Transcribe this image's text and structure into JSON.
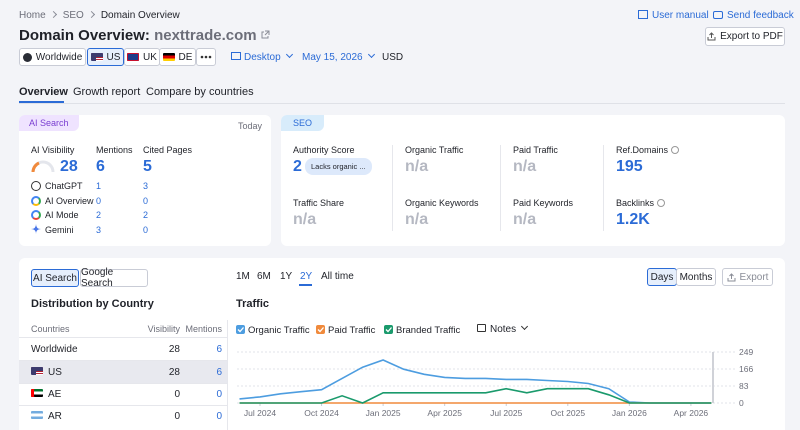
{
  "breadcrumb": [
    "Home",
    "SEO",
    "Domain Overview"
  ],
  "header": {
    "title": "Domain Overview:",
    "domain": "nexttrade.com",
    "user_manual": "User manual",
    "send_feedback": "Send feedback",
    "export": "Export to PDF"
  },
  "filters": {
    "databases": [
      "Worldwide",
      "US",
      "UK",
      "DE"
    ],
    "device": "Desktop",
    "date": "May 15, 2026",
    "currency": "USD"
  },
  "tabs": [
    "Overview",
    "Growth report",
    "Compare by countries"
  ],
  "ai_search": {
    "badge": "AI Search",
    "date": "Today",
    "metrics": [
      {
        "label": "AI Visibility",
        "value": 28
      },
      {
        "label": "Mentions",
        "value": 6
      },
      {
        "label": "Cited Pages",
        "value": 5
      }
    ],
    "rows": [
      {
        "name": "ChatGPT",
        "mentions": 1,
        "cited": 3
      },
      {
        "name": "AI Overview",
        "mentions": 0,
        "cited": 0
      },
      {
        "name": "AI Mode",
        "mentions": 2,
        "cited": 2
      },
      {
        "name": "Gemini",
        "mentions": 3,
        "cited": 0
      }
    ]
  },
  "seo": {
    "badge": "SEO",
    "metrics": [
      {
        "label": "Authority Score",
        "value": "2",
        "note": "Lacks organic ..."
      },
      {
        "label": "Organic Traffic",
        "value": "n/a"
      },
      {
        "label": "Paid Traffic",
        "value": "n/a"
      },
      {
        "label": "Ref.Domains",
        "value": "195"
      },
      {
        "label": "Traffic Share",
        "value": "n/a"
      },
      {
        "label": "Organic Keywords",
        "value": "n/a"
      },
      {
        "label": "Paid Keywords",
        "value": "n/a"
      },
      {
        "label": "Backlinks",
        "value": "1.2K"
      }
    ]
  },
  "source_toggle": [
    "AI Search",
    "Google Search"
  ],
  "distribution": {
    "title": "Distribution by Country",
    "columns": [
      "Countries",
      "Visibility",
      "Mentions"
    ],
    "rows": [
      [
        "Worldwide",
        28,
        6
      ],
      [
        "US",
        28,
        6
      ],
      [
        "AE",
        0,
        0
      ],
      [
        "AR",
        0,
        0
      ]
    ]
  },
  "ranges": [
    "1M",
    "6M",
    "1Y",
    "2Y",
    "All time"
  ],
  "views": [
    "Days",
    "Months"
  ],
  "export": "Export",
  "notes": "Notes",
  "chart_data": {
    "type": "line",
    "title": "Traffic",
    "x": [
      "2024-06",
      "2024-07",
      "2024-08",
      "2024-09",
      "2024-10",
      "2024-11",
      "2024-12",
      "2025-01",
      "2025-02",
      "2025-03",
      "2025-04",
      "2025-05",
      "2025-06",
      "2025-07",
      "2025-08",
      "2025-09",
      "2025-10",
      "2025-11",
      "2025-12",
      "2026-01",
      "2026-02",
      "2026-03",
      "2026-04",
      "2026-05"
    ],
    "series": [
      {
        "name": "Organic Traffic",
        "color": "#4d9de0",
        "values": [
          20,
          30,
          45,
          55,
          65,
          120,
          175,
          210,
          165,
          140,
          125,
          120,
          120,
          115,
          115,
          110,
          105,
          95,
          70,
          5,
          0,
          0,
          0,
          0
        ]
      },
      {
        "name": "Paid Traffic",
        "color": "#f08a3c",
        "values": [
          0,
          0,
          0,
          0,
          0,
          0,
          0,
          0,
          0,
          0,
          0,
          0,
          0,
          0,
          0,
          0,
          0,
          0,
          0,
          0,
          0,
          0,
          0,
          0
        ]
      },
      {
        "name": "Branded Traffic",
        "color": "#1a9a6c",
        "values": [
          0,
          0,
          0,
          0,
          0,
          35,
          0,
          50,
          50,
          50,
          50,
          50,
          50,
          70,
          50,
          70,
          70,
          70,
          40,
          0,
          0,
          0,
          0,
          0
        ]
      }
    ],
    "ylim": [
      0,
      249
    ],
    "yticks": [
      0,
      83,
      166,
      249
    ],
    "xlim": [
      "2024-06",
      "2026-05"
    ],
    "xticks": [
      {
        "value": "2024-07",
        "label": "Jul 2024"
      },
      {
        "value": "2024-10",
        "label": "Oct 2024"
      },
      {
        "value": "2025-01",
        "label": "Jan 2025"
      },
      {
        "value": "2025-04",
        "label": "Apr 2025"
      },
      {
        "value": "2025-07",
        "label": "Jul 2025"
      },
      {
        "value": "2025-10",
        "label": "Oct 2025"
      },
      {
        "value": "2026-01",
        "label": "Jan 2026"
      },
      {
        "value": "2026-04",
        "label": "Apr 2026"
      }
    ],
    "grid": true
  }
}
